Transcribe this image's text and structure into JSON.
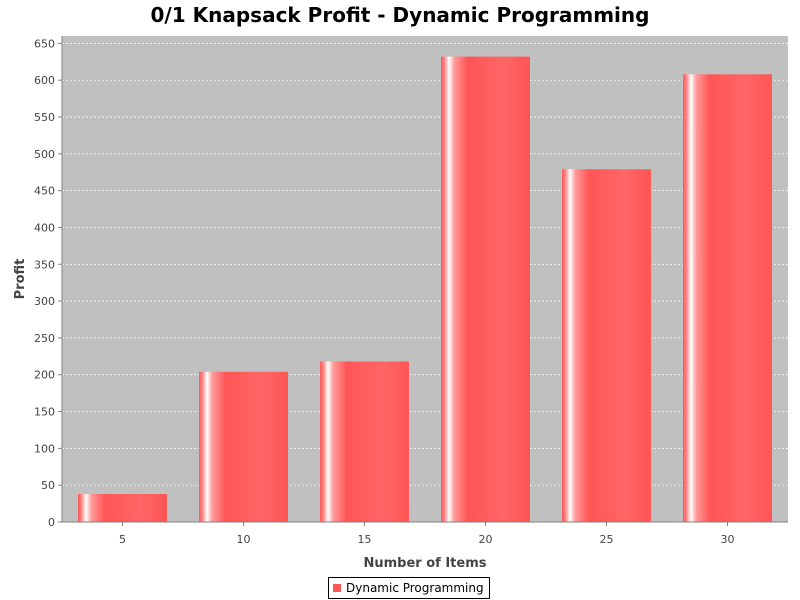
{
  "chart_data": {
    "type": "bar",
    "title": "0/1 Knapsack Profit - Dynamic Programming",
    "xlabel": "Number of Items",
    "ylabel": "Profit",
    "categories": [
      "5",
      "10",
      "15",
      "20",
      "25",
      "30"
    ],
    "series": [
      {
        "name": "Dynamic Programming",
        "values": [
          38,
          204,
          218,
          632,
          479,
          608
        ],
        "color": "#ff5555"
      }
    ],
    "ylim": [
      0,
      660
    ],
    "yticks": [
      0,
      50,
      100,
      150,
      200,
      250,
      300,
      350,
      400,
      450,
      500,
      550,
      600,
      650
    ],
    "grid": true,
    "legend_position": "bottom-center",
    "plot_background": "#c0c0c0"
  }
}
